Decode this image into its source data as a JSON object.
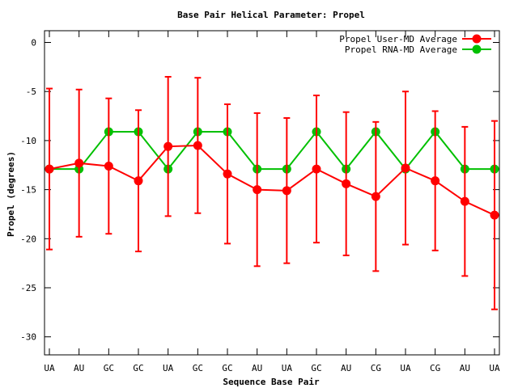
{
  "chart_data": {
    "type": "line",
    "title": "Base Pair Helical Parameter: Propel",
    "xlabel": "Sequence Base Pair",
    "ylabel": "Propel (degrees)",
    "ylim": [
      -32,
      1.5
    ],
    "yticks": [
      0,
      -5,
      -10,
      -15,
      -20,
      -25,
      -30
    ],
    "grid": false,
    "legend_position": "top-right",
    "categories": [
      "UA",
      "AU",
      "GC",
      "GC",
      "UA",
      "GC",
      "GC",
      "AU",
      "UA",
      "GC",
      "AU",
      "CG",
      "UA",
      "CG",
      "AU",
      "UA"
    ],
    "series": [
      {
        "name": "Propel User-MD Average",
        "color": "#ff0000",
        "values": [
          -12.9,
          -12.3,
          -12.6,
          -14.1,
          -10.6,
          -10.5,
          -13.4,
          -15.0,
          -15.1,
          -12.9,
          -14.4,
          -15.7,
          -12.8,
          -14.1,
          -16.2,
          -17.6
        ],
        "error": [
          8.2,
          7.5,
          6.9,
          7.2,
          7.1,
          6.9,
          7.1,
          7.8,
          7.4,
          7.5,
          7.3,
          7.6,
          7.8,
          7.1,
          7.6,
          9.6
        ]
      },
      {
        "name": "Propel RNA-MD Average",
        "color": "#00c000",
        "values": [
          -12.9,
          -12.9,
          -9.1,
          -9.1,
          -12.9,
          -9.1,
          -9.1,
          -12.9,
          -12.9,
          -9.1,
          -12.9,
          -9.1,
          -12.9,
          -9.1,
          -12.9,
          -12.9
        ]
      }
    ]
  }
}
